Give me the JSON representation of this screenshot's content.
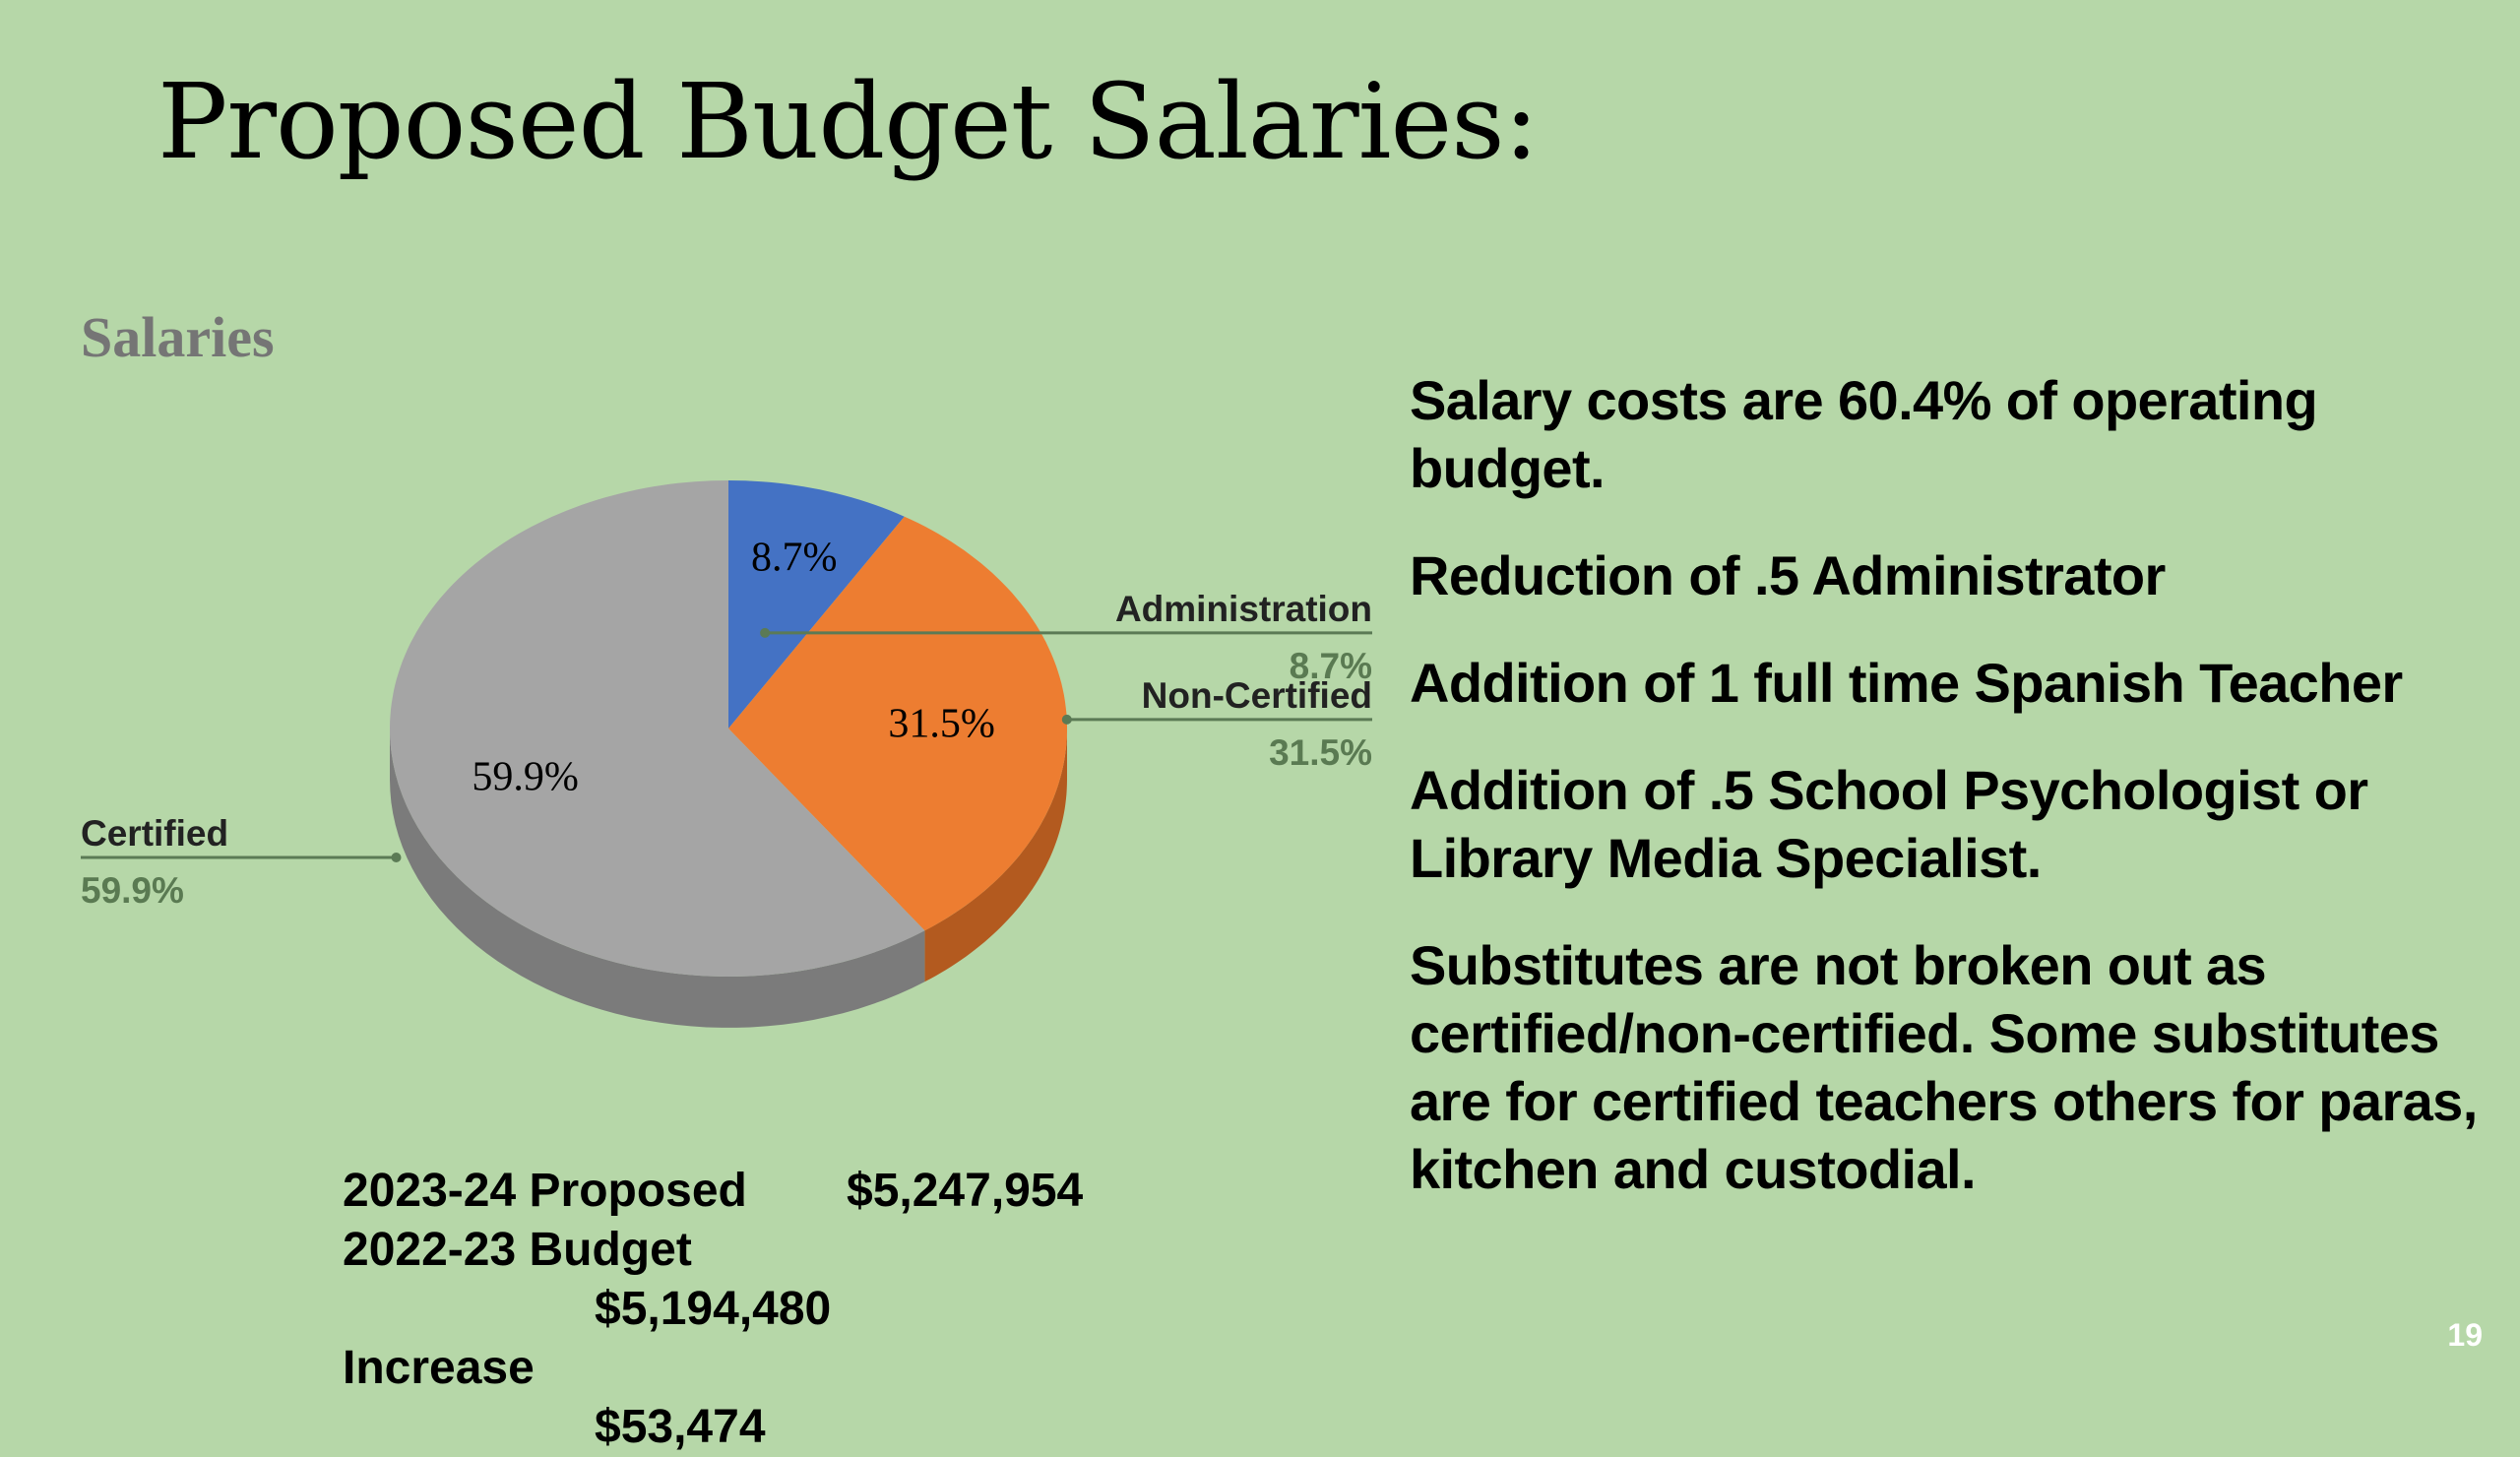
{
  "slide": {
    "title": "Proposed Budget Salaries:",
    "page_number": "19"
  },
  "bullets": [
    "Salary costs are 60.4% of operating budget.",
    "Reduction of .5 Administrator",
    "Addition of 1 full time Spanish Teacher",
    "Addition of .5 School Psychologist or Library Media Specialist.",
    "Substitutes are not broken out as certified/non-certified. Some substitutes are for certified teachers others for paras, kitchen and custodial."
  ],
  "totals": [
    {
      "label": "2023-24 Proposed",
      "value": "$5,247,954"
    },
    {
      "label": "2022-23 Budget",
      "value": "$5,194,480"
    },
    {
      "label": "Increase",
      "value": "$53,474"
    }
  ],
  "chart_data": {
    "type": "pie",
    "title": "Salaries",
    "three_d": true,
    "slices": [
      {
        "name": "Administration",
        "value": 8.7,
        "label": "8.7%",
        "color": "#4472c4",
        "side_color": "#2e5090"
      },
      {
        "name": "Non-Certified",
        "value": 31.5,
        "label": "31.5%",
        "color": "#ed7d31",
        "side_color": "#b35a1f"
      },
      {
        "name": "Certified",
        "value": 59.9,
        "label": "59.9%",
        "color": "#a5a5a5",
        "side_color": "#7b7b7b"
      }
    ],
    "legend": "callouts"
  }
}
